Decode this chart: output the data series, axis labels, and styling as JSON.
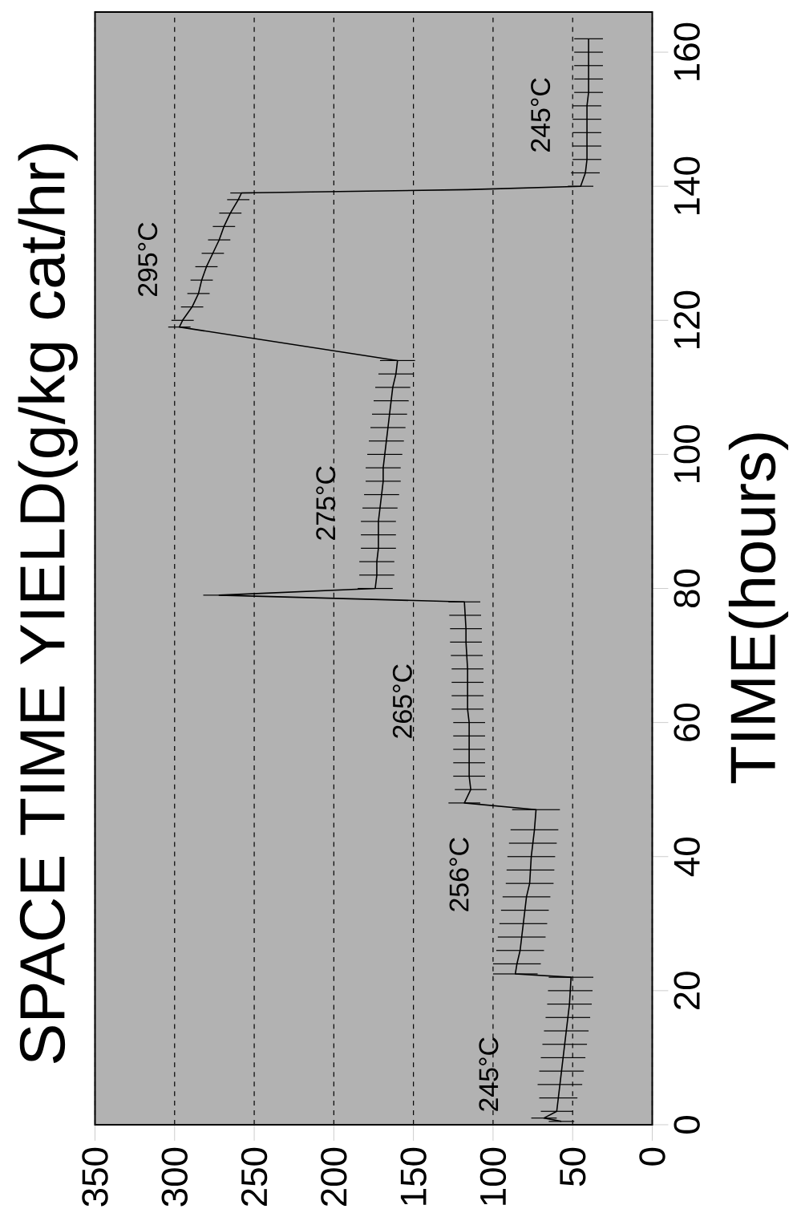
{
  "chart_data": {
    "type": "line",
    "title": "SPACE TIME YIELD(g/kg cat/hr)",
    "ylabel": "TIME(hours)",
    "xlim": [
      350,
      0
    ],
    "ylim": [
      0,
      166
    ],
    "xticks": [
      350,
      300,
      250,
      200,
      150,
      100,
      50,
      0
    ],
    "yticks": [
      0,
      20,
      40,
      60,
      80,
      100,
      120,
      140,
      160
    ],
    "grid": "x",
    "color": "#000000",
    "x": [
      57,
      68,
      60,
      59,
      58,
      57,
      56,
      55,
      54,
      53,
      52,
      51.5,
      51,
      86,
      85,
      83,
      82,
      81,
      80,
      79,
      77,
      76.5,
      76,
      75,
      74,
      73,
      118,
      114,
      115,
      115,
      115,
      115,
      115,
      116,
      116,
      116,
      116,
      116.5,
      117,
      117,
      117.5,
      118,
      272,
      174,
      173,
      173,
      172,
      172,
      172,
      171,
      170,
      169,
      169,
      168,
      167,
      166,
      165,
      164,
      163,
      161,
      160,
      297,
      295,
      289,
      285,
      283,
      280,
      276,
      272,
      269,
      265,
      260,
      258,
      116,
      45,
      42,
      41,
      41,
      41,
      41,
      41,
      40,
      40,
      40,
      40,
      40
    ],
    "values": [
      0.5,
      1,
      2,
      4,
      6,
      8,
      10,
      12,
      14,
      16,
      18,
      20,
      22,
      22.5,
      24,
      26,
      28,
      30,
      32,
      34,
      36,
      38,
      40,
      42,
      44,
      47,
      48,
      50,
      52,
      54,
      56,
      58,
      60,
      62,
      64,
      66,
      68,
      70,
      72,
      74,
      76,
      78,
      79,
      80,
      82,
      84,
      86,
      88,
      90,
      92,
      94,
      96,
      98,
      100,
      102,
      104,
      106,
      108,
      110,
      112,
      114,
      119,
      120,
      122,
      124,
      126,
      128,
      130,
      132,
      134,
      136,
      138,
      139,
      139.5,
      140,
      142,
      144,
      146,
      148,
      150,
      152,
      154,
      156,
      158,
      160,
      162
    ],
    "xerrors": [
      8,
      8,
      10,
      12,
      14,
      14,
      14,
      14,
      14,
      14,
      14,
      14,
      14,
      14,
      15,
      15,
      15,
      15,
      15,
      15,
      15,
      15,
      15,
      15,
      15,
      15,
      10,
      10,
      10,
      10,
      10,
      10,
      10,
      10,
      10,
      10,
      10,
      10,
      10,
      10,
      10,
      10,
      10,
      11,
      11,
      11,
      11,
      11,
      11,
      11,
      11,
      11,
      11,
      11,
      11,
      11,
      11,
      11,
      11,
      11,
      11,
      7,
      7,
      7,
      7,
      7,
      7,
      7,
      7,
      7,
      7,
      7,
      7,
      null,
      8,
      9,
      9,
      9,
      9,
      9,
      9,
      9,
      9,
      9,
      9,
      9
    ],
    "annotations": [
      "245°C",
      "256°C",
      "265°C",
      "275°C",
      "295°C",
      "245°C"
    ]
  }
}
